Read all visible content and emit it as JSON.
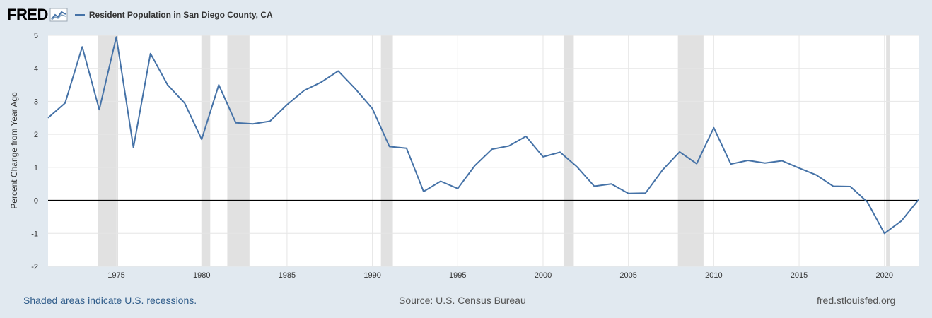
{
  "header": {
    "logo_text": "FRED",
    "legend_label": "Resident Population in San Diego County, CA"
  },
  "footer": {
    "recessions_note": "Shaded areas indicate U.S. recessions.",
    "source": "Source: U.S. Census Bureau",
    "site": "fred.stlouisfed.org"
  },
  "colors": {
    "series": "#4572a7",
    "recession": "#e1e1e1",
    "background": "#e1e9f0"
  },
  "chart_data": {
    "type": "line",
    "title": "Resident Population in San Diego County, CA",
    "xlabel": "",
    "ylabel": "Percent Change from Year Ago",
    "xlim": [
      1971,
      2022
    ],
    "ylim": [
      -2,
      5
    ],
    "yticks": [
      5,
      4,
      3,
      2,
      1,
      0,
      -1,
      -2
    ],
    "yticklabels": [
      "5",
      "4",
      "3",
      "2",
      "1",
      "0",
      "-1",
      "-2"
    ],
    "xticks": [
      1975,
      1980,
      1985,
      1990,
      1995,
      2000,
      2005,
      2010,
      2015,
      2020
    ],
    "xticklabels": [
      "1975",
      "1980",
      "1985",
      "1990",
      "1995",
      "2000",
      "2005",
      "2010",
      "2015",
      "2020"
    ],
    "recessions": [
      [
        1973.9,
        1975.1
      ],
      [
        1980.0,
        1980.5
      ],
      [
        1981.5,
        1982.8
      ],
      [
        1990.5,
        1991.2
      ],
      [
        2001.2,
        2001.8
      ],
      [
        2007.9,
        2009.4
      ],
      [
        2020.1,
        2020.3
      ]
    ],
    "series": [
      {
        "name": "Resident Population in San Diego County, CA",
        "x": [
          1971,
          1972,
          1973,
          1974,
          1975,
          1976,
          1977,
          1978,
          1979,
          1980,
          1981,
          1982,
          1983,
          1984,
          1985,
          1986,
          1987,
          1988,
          1989,
          1990,
          1991,
          1992,
          1993,
          1994,
          1995,
          1996,
          1997,
          1998,
          1999,
          2000,
          2001,
          2002,
          2003,
          2004,
          2005,
          2006,
          2007,
          2008,
          2009,
          2010,
          2011,
          2012,
          2013,
          2014,
          2015,
          2016,
          2017,
          2018,
          2019,
          2020,
          2021,
          2022
        ],
        "values": [
          2.5,
          2.95,
          4.65,
          2.75,
          4.95,
          1.6,
          4.45,
          3.5,
          2.95,
          1.85,
          3.5,
          2.35,
          2.32,
          2.4,
          2.9,
          3.33,
          3.58,
          3.92,
          3.38,
          2.78,
          1.63,
          1.58,
          0.27,
          0.58,
          0.36,
          1.05,
          1.55,
          1.65,
          1.94,
          1.32,
          1.46,
          1.01,
          0.43,
          0.5,
          0.21,
          0.22,
          0.92,
          1.47,
          1.11,
          2.2,
          1.1,
          1.21,
          1.13,
          1.2,
          0.98,
          0.77,
          0.43,
          0.42,
          -0.05,
          -1.0,
          -0.62,
          0.02
        ]
      }
    ],
    "grid": true,
    "legend": "top-left"
  }
}
